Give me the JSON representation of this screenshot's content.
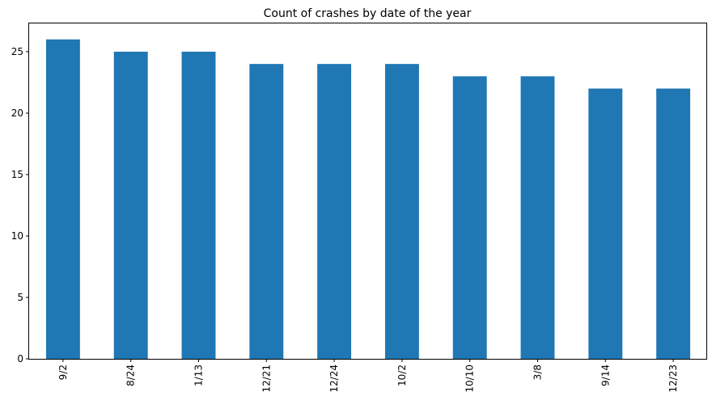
{
  "chart_data": {
    "type": "bar",
    "title": "Count of crashes by date of the year",
    "xlabel": "",
    "ylabel": "",
    "categories": [
      "9/2",
      "8/24",
      "1/13",
      "12/21",
      "12/24",
      "10/2",
      "10/10",
      "3/8",
      "9/14",
      "12/23"
    ],
    "values": [
      26,
      25,
      25,
      24,
      24,
      24,
      23,
      23,
      22,
      22
    ],
    "ylim": [
      0,
      27.3
    ],
    "yticks": [
      0,
      5,
      10,
      15,
      20,
      25
    ],
    "grid": false,
    "legend": "none",
    "bar_color": "#1f77b4",
    "xtick_rotation": "vertical"
  }
}
